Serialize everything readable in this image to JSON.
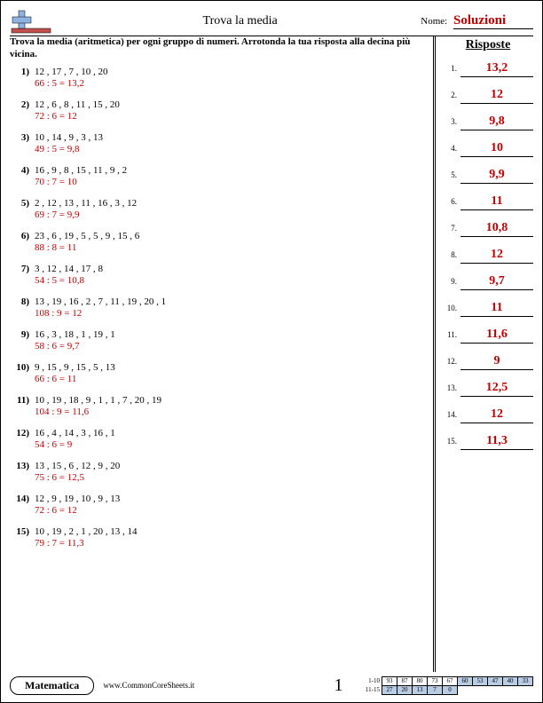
{
  "header": {
    "title": "Trova la media",
    "name_label": "Nome:",
    "name_value": "Soluzioni"
  },
  "instructions": "Trova la media (aritmetica) per ogni gruppo di numeri. Arrotonda la tua risposta alla decina più vicina.",
  "answers_title": "Risposte",
  "problems": [
    {
      "n": "1)",
      "numbers": "12 , 17 , 7 , 10 , 20",
      "solution": "66 : 5 = 13,2",
      "answer": "13,2"
    },
    {
      "n": "2)",
      "numbers": "12 , 6 , 8 , 11 , 15 , 20",
      "solution": "72 : 6 = 12",
      "answer": "12"
    },
    {
      "n": "3)",
      "numbers": "10 , 14 , 9 , 3 , 13",
      "solution": "49 : 5 = 9,8",
      "answer": "9,8"
    },
    {
      "n": "4)",
      "numbers": "16 , 9 , 8 , 15 , 11 , 9 , 2",
      "solution": "70 : 7 = 10",
      "answer": "10"
    },
    {
      "n": "5)",
      "numbers": "2 , 12 , 13 , 11 , 16 , 3 , 12",
      "solution": "69 : 7 = 9,9",
      "answer": "9,9"
    },
    {
      "n": "6)",
      "numbers": "23 , 6 , 19 , 5 , 5 , 9 , 15 , 6",
      "solution": "88 : 8 = 11",
      "answer": "11"
    },
    {
      "n": "7)",
      "numbers": "3 , 12 , 14 , 17 , 8",
      "solution": "54 : 5 = 10,8",
      "answer": "10,8"
    },
    {
      "n": "8)",
      "numbers": "13 , 19 , 16 , 2 , 7 , 11 , 19 , 20 , 1",
      "solution": "108 : 9 = 12",
      "answer": "12"
    },
    {
      "n": "9)",
      "numbers": "16 , 3 , 18 , 1 , 19 , 1",
      "solution": "58 : 6 = 9,7",
      "answer": "9,7"
    },
    {
      "n": "10)",
      "numbers": "9 , 15 , 9 , 15 , 5 , 13",
      "solution": "66 : 6 = 11",
      "answer": "11"
    },
    {
      "n": "11)",
      "numbers": "10 , 19 , 18 , 9 , 1 , 1 , 7 , 20 , 19",
      "solution": "104 : 9 = 11,6",
      "answer": "11,6"
    },
    {
      "n": "12)",
      "numbers": "16 , 4 , 14 , 3 , 16 , 1",
      "solution": "54 : 6 = 9",
      "answer": "9"
    },
    {
      "n": "13)",
      "numbers": "13 , 15 , 6 , 12 , 9 , 20",
      "solution": "75 : 6 = 12,5",
      "answer": "12,5"
    },
    {
      "n": "14)",
      "numbers": "12 , 9 , 19 , 10 , 9 , 13",
      "solution": "72 : 6 = 12",
      "answer": "12"
    },
    {
      "n": "15)",
      "numbers": "10 , 19 , 2 , 1 , 20 , 13 , 14",
      "solution": "79 : 7 = 11,3",
      "answer": "11,3"
    }
  ],
  "footer": {
    "subject": "Matematica",
    "url": "www.CommonCoreSheets.it",
    "page_number": "1",
    "score_labels": [
      "1-10",
      "11-15"
    ],
    "score_row1": [
      "93",
      "87",
      "80",
      "73",
      "67",
      "60",
      "53",
      "47",
      "40",
      "33"
    ],
    "score_row2": [
      "27",
      "20",
      "13",
      "7",
      "0"
    ],
    "shaded_count_row1": 5,
    "shaded_count_row2": 5
  },
  "colors": {
    "solution_color": "#c00000",
    "shaded_bg": "#b8cce4"
  }
}
